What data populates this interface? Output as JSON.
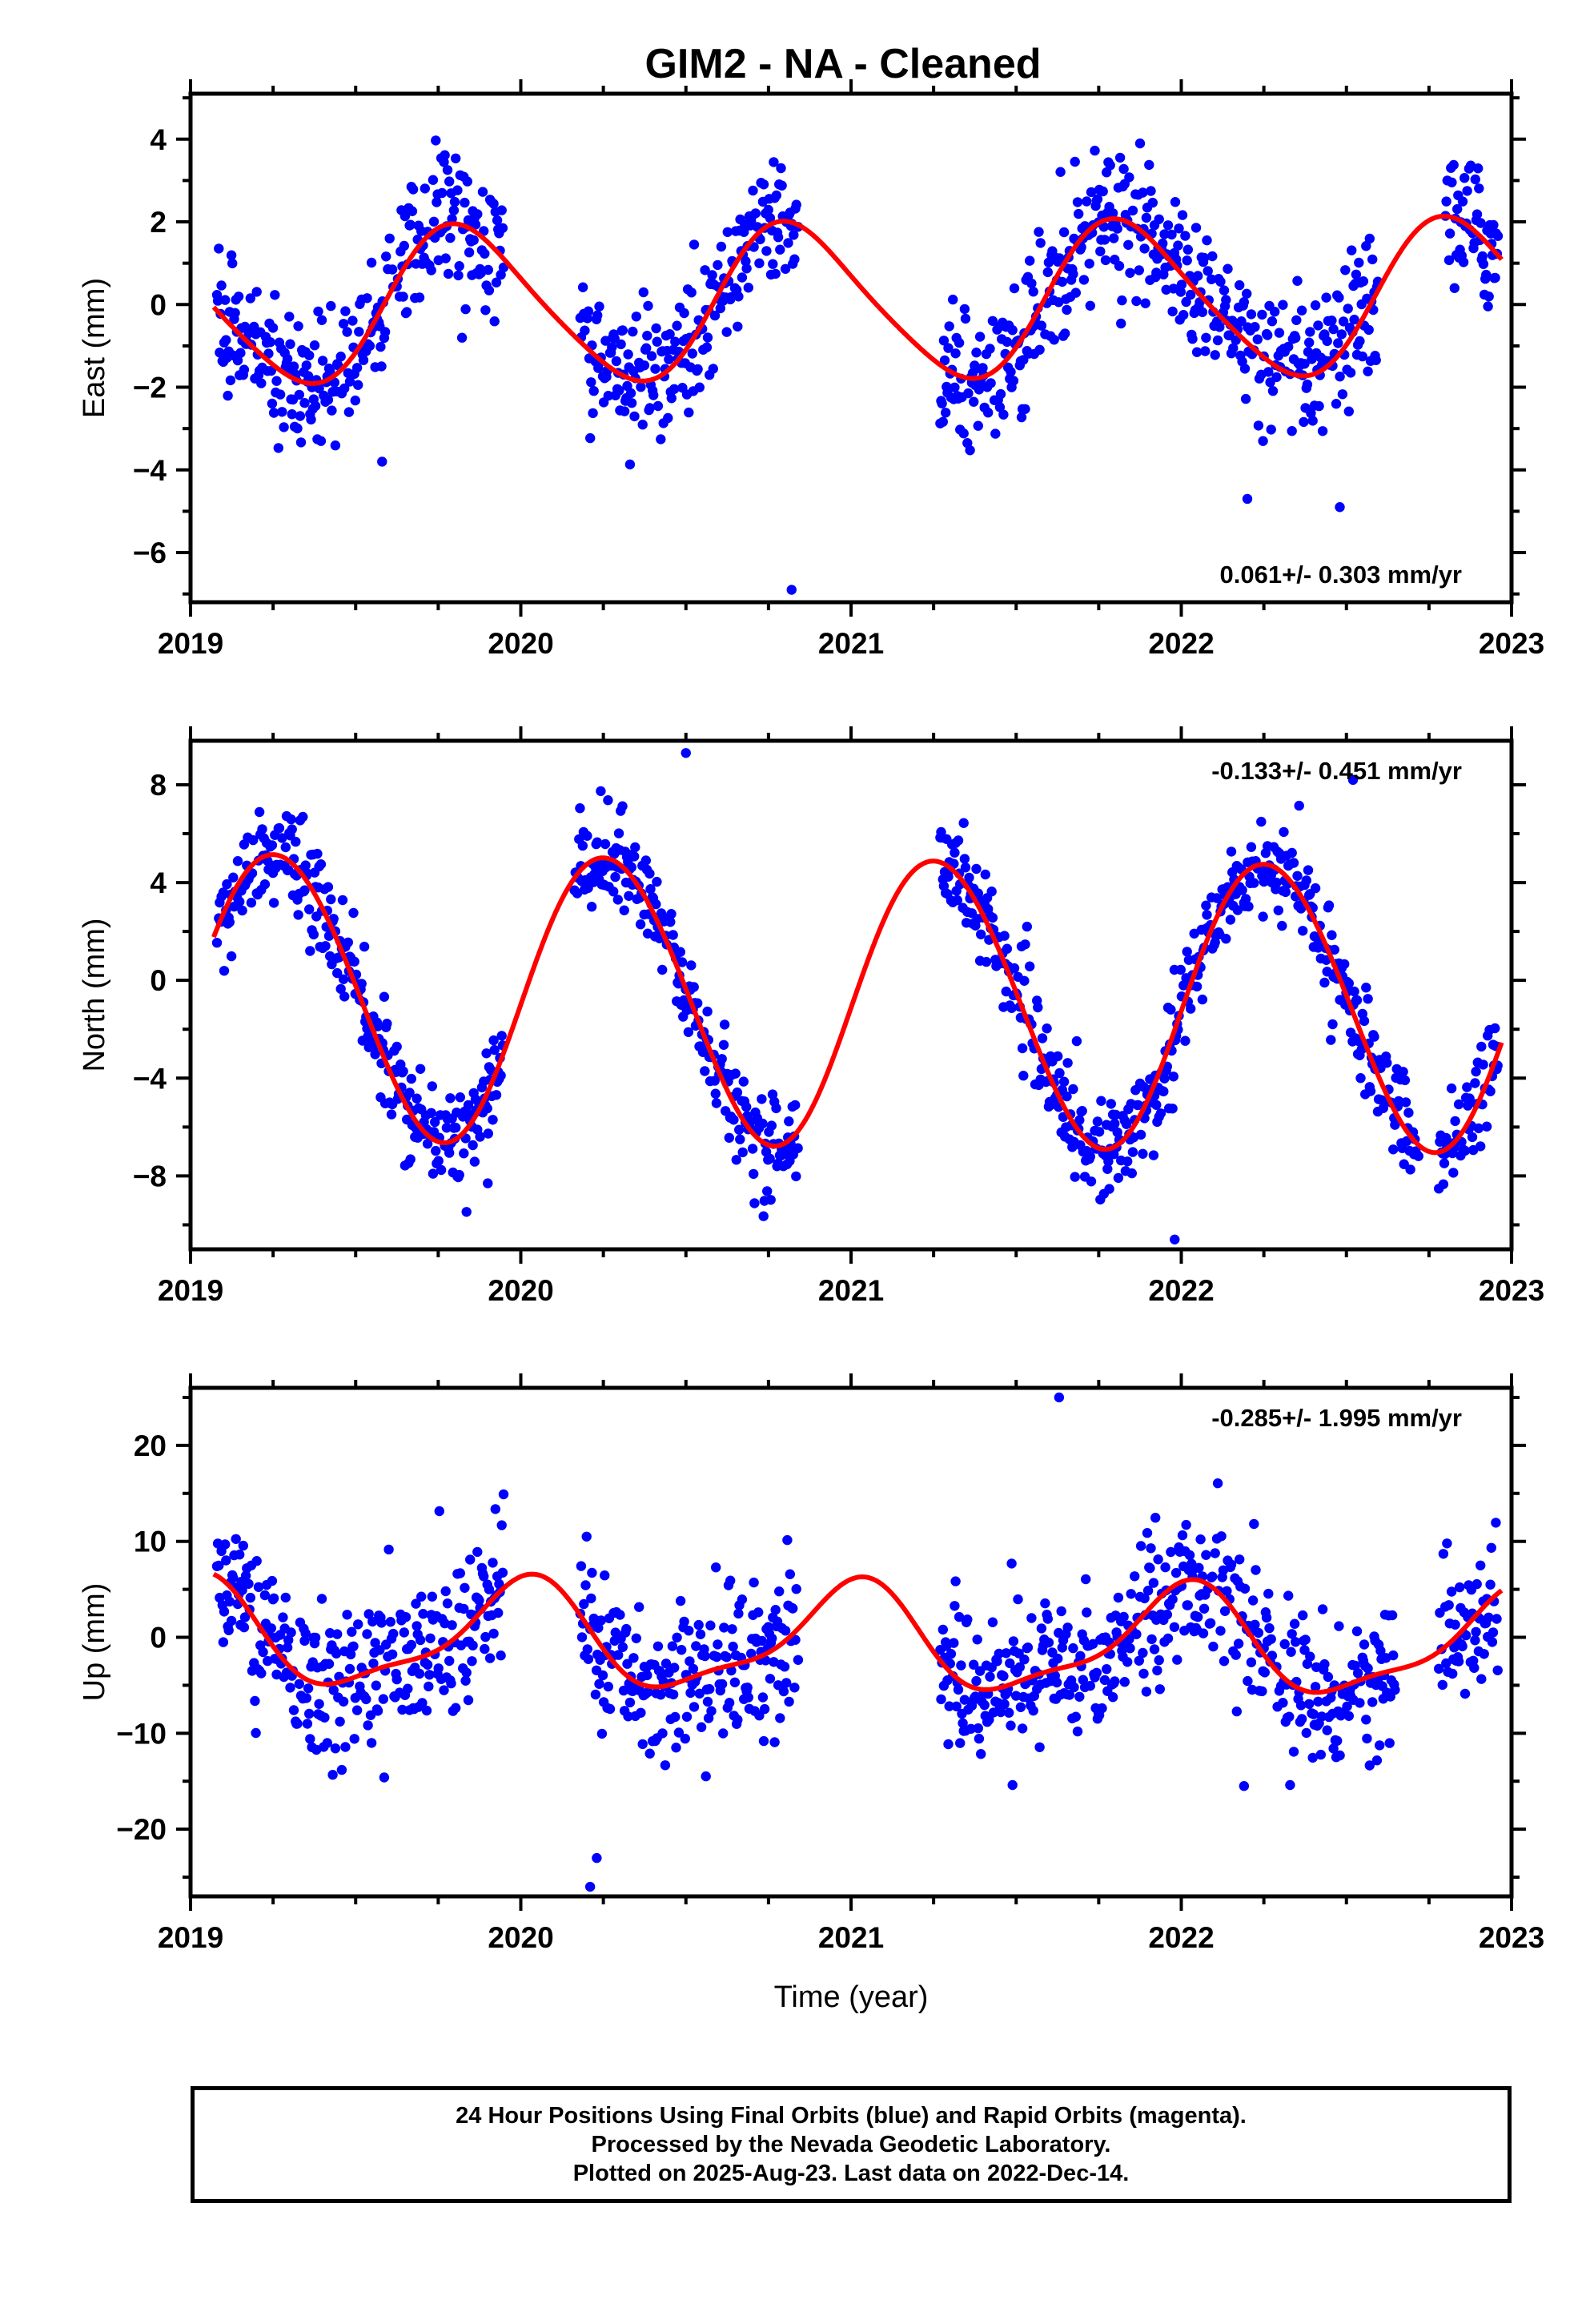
{
  "chart_data": {
    "title": "GIM2  - NA - Cleaned",
    "xlabel": "Time (year)",
    "xlim": [
      2019.0,
      2023.0
    ],
    "x_ticks": [
      2019,
      2020,
      2021,
      2022,
      2023
    ],
    "colors": {
      "points": "#0000ff",
      "fit": "#ff0000",
      "frame": "#000000"
    },
    "panels": [
      {
        "type": "scatter",
        "ylabel": "East (mm)",
        "ylim": [
          -7.2,
          5.1
        ],
        "y_ticks": [
          4,
          2,
          0,
          -2,
          -4,
          -6
        ],
        "rate_label": "0.061+/- 0.303 mm/yr",
        "rate_position": "bottom-right",
        "fit": {
          "mean": 0.05,
          "trend": 0.061,
          "a1": 1.86,
          "phase1": 2.65,
          "a2": 0.25,
          "phase2": -1.25
        },
        "data_segments": [
          [
            2019.08,
            2019.95
          ],
          [
            2020.18,
            2020.84
          ],
          [
            2021.27,
            2022.6
          ],
          [
            2022.8,
            2022.96
          ]
        ],
        "noise_sd": 0.8,
        "outliers": [
          {
            "x": 2020.82,
            "y": -6.9
          },
          {
            "x": 2022.2,
            "y": -4.7
          },
          {
            "x": 2022.48,
            "y": -4.9
          },
          {
            "x": 2019.58,
            "y": -3.8
          }
        ]
      },
      {
        "type": "scatter",
        "ylabel": "North (mm)",
        "ylim": [
          -11.0,
          9.8
        ],
        "y_ticks": [
          8,
          4,
          0,
          -4,
          -8
        ],
        "rate_label": "-0.133+/- 0.451 mm/yr",
        "rate_position": "top-right",
        "fit": {
          "mean": -0.85,
          "trend": -0.133,
          "a1": 5.85,
          "phase1": -0.06,
          "a2": 0.2,
          "phase2": 0.4
        },
        "data_segments": [
          [
            2019.08,
            2019.95
          ],
          [
            2020.16,
            2020.84
          ],
          [
            2021.27,
            2022.72
          ],
          [
            2022.78,
            2022.96
          ]
        ],
        "noise_sd": 1.0,
        "outliers": [
          {
            "x": 2020.5,
            "y": 9.3
          },
          {
            "x": 2021.98,
            "y": -10.6
          },
          {
            "x": 2019.9,
            "y": -8.3
          },
          {
            "x": 2022.52,
            "y": 8.2
          }
        ]
      },
      {
        "type": "scatter",
        "ylabel": "Up (mm)",
        "ylim": [
          -27.0,
          26.0
        ],
        "y_ticks": [
          20,
          10,
          0,
          -10,
          -20
        ],
        "rate_label": "-0.285+/- 1.995 mm/yr",
        "rate_position": "top-right",
        "fit": {
          "mean": -0.4,
          "trend": -0.285,
          "a1": 5.3,
          "phase1": 1.55,
          "a2": 1.6,
          "phase2": 0.8
        },
        "data_segments": [
          [
            2019.08,
            2019.95
          ],
          [
            2020.18,
            2020.84
          ],
          [
            2021.27,
            2022.65
          ],
          [
            2022.78,
            2022.96
          ]
        ],
        "noise_sd": 3.8,
        "outliers": [
          {
            "x": 2020.21,
            "y": -26.0
          },
          {
            "x": 2021.63,
            "y": 25.0
          },
          {
            "x": 2020.23,
            "y": -23.0
          },
          {
            "x": 2022.19,
            "y": -15.5
          }
        ]
      }
    ]
  },
  "footer": {
    "line1": "24 Hour Positions Using Final Orbits (blue) and Rapid Orbits (magenta).",
    "line2": "Processed by the Nevada Geodetic Laboratory.",
    "line3": "Plotted on 2025-Aug-23. Last data on 2022-Dec-14."
  }
}
